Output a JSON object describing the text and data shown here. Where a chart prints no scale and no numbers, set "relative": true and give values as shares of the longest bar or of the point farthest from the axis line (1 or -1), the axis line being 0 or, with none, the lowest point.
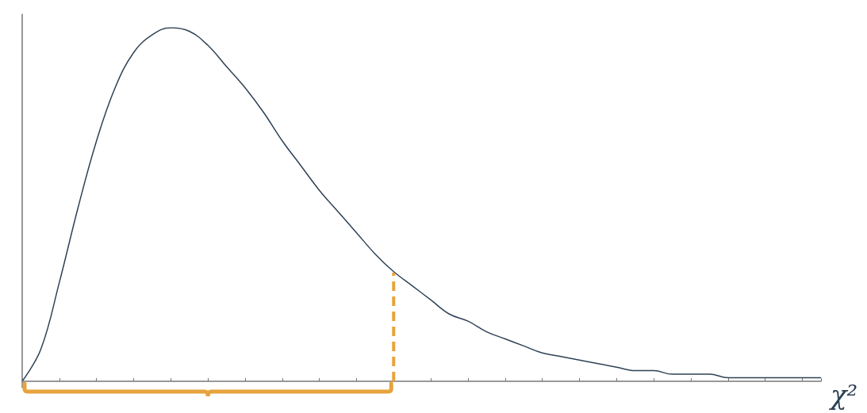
{
  "chart_data": {
    "type": "line",
    "relative": true,
    "xlabel": "χ²",
    "color": "#2e4256",
    "marker": "none",
    "grid": false,
    "categories": [
      null,
      null,
      null,
      null,
      null,
      null,
      null,
      null,
      null,
      null,
      null,
      null,
      null,
      null,
      null,
      null,
      null,
      null,
      null,
      null,
      null,
      null,
      null,
      null,
      null,
      null,
      null,
      null,
      null,
      null,
      null,
      null,
      null,
      null,
      null,
      null,
      null,
      null,
      null,
      null,
      null,
      null,
      null,
      null
    ],
    "values": [
      0,
      0.09,
      0.28,
      0.49,
      0.68,
      0.83,
      0.93,
      0.98,
      1,
      0.99,
      0.95,
      0.89,
      0.83,
      0.76,
      0.68,
      0.61,
      0.54,
      0.48,
      0.42,
      0.36,
      0.31,
      0.27,
      0.23,
      0.19,
      0.17,
      0.14,
      0.12,
      0.1,
      0.08,
      0.07,
      0.06,
      0.05,
      0.04,
      0.03,
      0.03,
      0.02,
      0.02,
      0.02,
      0.01,
      0.01,
      0.01,
      0.01,
      0.01,
      0.01
    ]
  }
}
